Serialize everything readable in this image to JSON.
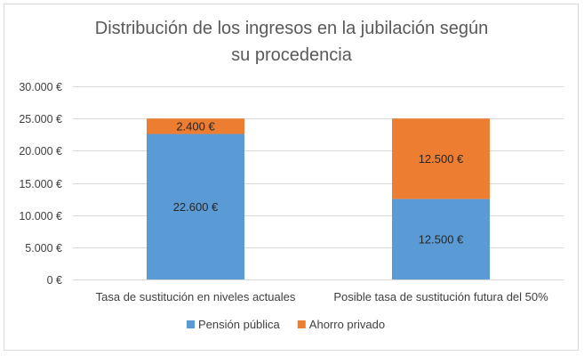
{
  "chart_data": {
    "type": "bar",
    "stacked": true,
    "title": [
      "Distribución de los ingresos en la jubilación según",
      "su procedencia"
    ],
    "categories": [
      "Tasa de sustitución en niveles actuales",
      "Posible tasa de sustitución futura del 50%"
    ],
    "series": [
      {
        "name": "Pensión pública",
        "color": "#5b9bd5",
        "values": [
          22600,
          12500
        ],
        "labels": [
          "22.600 €",
          "12.500 €"
        ]
      },
      {
        "name": "Ahorro privado",
        "color": "#ed7d31",
        "values": [
          2400,
          12500
        ],
        "labels": [
          "2.400 €",
          "12.500 €"
        ]
      }
    ],
    "ylim": [
      0,
      30000
    ],
    "yticks": [
      0,
      5000,
      10000,
      15000,
      20000,
      25000,
      30000
    ],
    "ytick_labels": [
      "0 €",
      "5.000 €",
      "10.000 €",
      "15.000 €",
      "20.000 €",
      "25.000 €",
      "30.000 €"
    ],
    "grid": true,
    "legend_position": "bottom"
  }
}
